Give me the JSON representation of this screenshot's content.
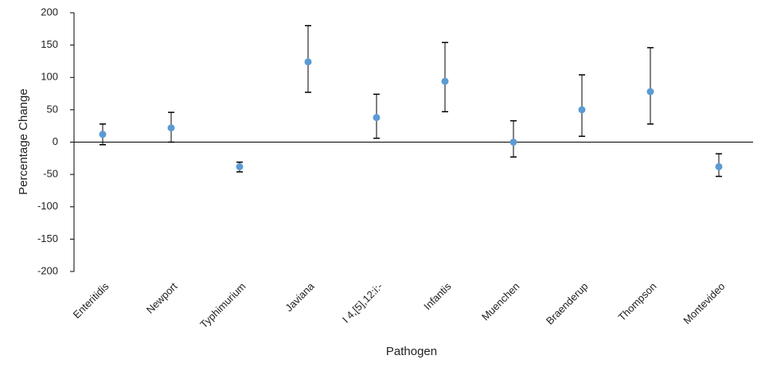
{
  "chart_data": {
    "type": "errorbar_scatter",
    "x_label": "Pathogen",
    "y_label": "Percentage Change",
    "categories": [
      "Enteritidis",
      "Newport",
      "Typhimurium",
      "Javiana",
      "I 4,[5],12:i:-",
      "Infantis",
      "Muenchen",
      "Braenderup",
      "Thompson",
      "Montevideo"
    ],
    "values": [
      12,
      22,
      -38,
      124,
      38,
      94,
      0,
      50,
      78,
      -38
    ],
    "error_high": [
      28,
      46,
      -31,
      180,
      74,
      154,
      33,
      104,
      146,
      -18
    ],
    "error_low": [
      -4,
      0,
      -46,
      77,
      6,
      47,
      -23,
      9,
      28,
      -53
    ],
    "color": "#5b9bd5",
    "ylim": [
      -200,
      200
    ],
    "yticks": [
      -200,
      -150,
      -100,
      -50,
      0,
      50,
      100,
      150,
      200
    ],
    "grid": false
  }
}
